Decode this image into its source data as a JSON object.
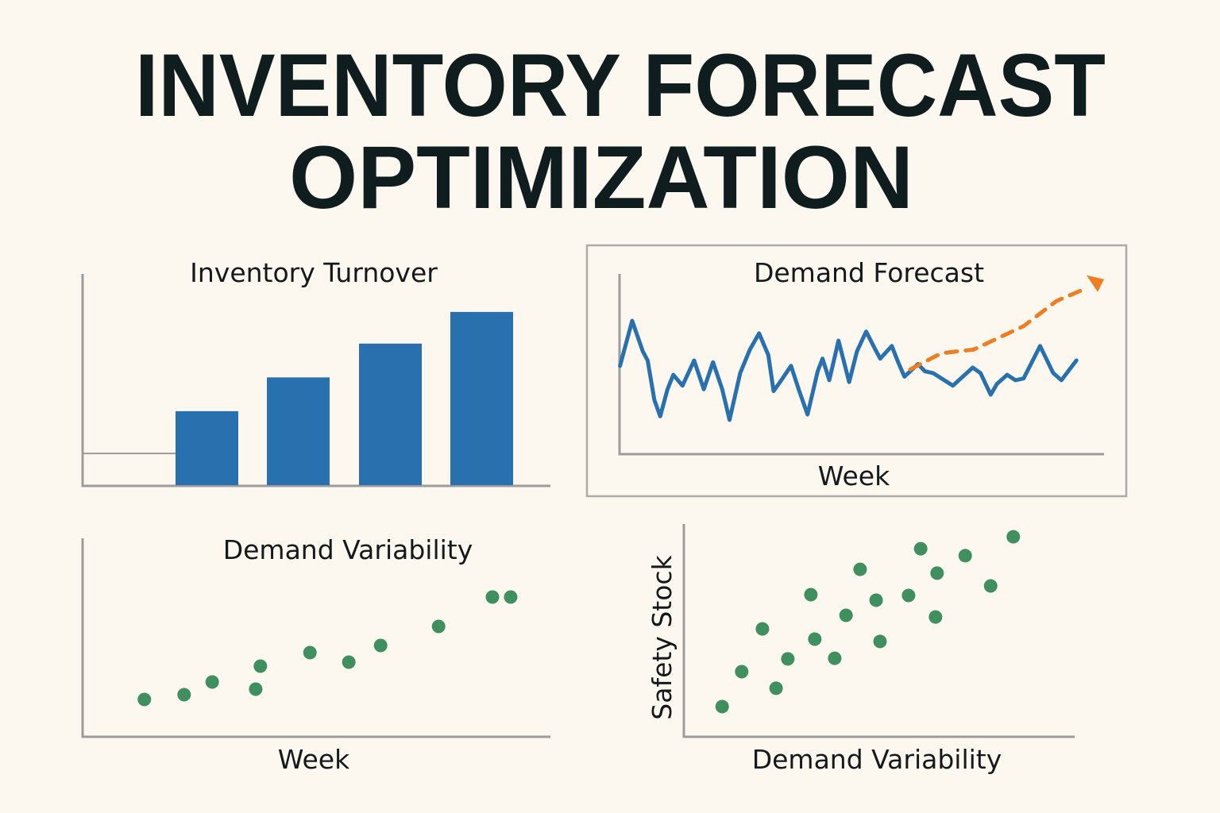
{
  "title": {
    "line1": "INVENTORY FORECAST",
    "line2": "OPTIMIZATION"
  },
  "colors": {
    "background": "#fcf8ef",
    "bar": "#2870ae",
    "line": "#2870ae",
    "forecast": "#ee7d23",
    "points": "#3f8f5f",
    "axis": "#9c9c9c",
    "text": "#0f1d1f"
  },
  "chart_data": [
    {
      "type": "bar",
      "title": "Inventory Turnover",
      "xlabel": "",
      "ylabel": "",
      "ylim": [
        0,
        100
      ],
      "baseline_segment_value": 15,
      "values": [
        35,
        51,
        67,
        82
      ],
      "grid": false
    },
    {
      "type": "line",
      "title": "Demand Forecast",
      "xlabel": "Week",
      "ylabel": "",
      "xlim": [
        0,
        100
      ],
      "ylim": [
        0,
        100
      ],
      "grid": false,
      "framed": true,
      "series": [
        {
          "style": "solid",
          "color": "#2870ae",
          "x": [
            0.1,
            2.6,
            4.8,
            5.8,
            7.2,
            8.4,
            9.9,
            11.1,
            13.0,
            15.4,
            17.4,
            19.3,
            21.2,
            22.7,
            24.9,
            26.9,
            28.8,
            30.7,
            31.8,
            33.4,
            35.4,
            37.1,
            38.8,
            40.9,
            41.9,
            43.3,
            45.2,
            47.4,
            49.0,
            50.9,
            52.8,
            53.8,
            56.2,
            57.5,
            58.8,
            61.6,
            63.0,
            64.7,
            68.8,
            72.9,
            74.5,
            76.6,
            77.9,
            80.0,
            81.7,
            83.4,
            86.8,
            89.5,
            91.2,
            94.3
          ],
          "y": [
            49,
            74,
            57,
            52,
            30,
            21,
            36,
            44,
            38,
            52,
            36,
            51,
            36,
            19,
            45,
            58,
            67,
            55,
            35,
            41,
            49,
            35,
            22,
            46,
            53,
            41,
            63,
            40,
            57,
            68,
            58,
            53,
            60,
            51,
            43,
            50,
            46,
            45,
            38,
            48,
            45,
            33,
            39,
            44,
            41,
            42,
            60,
            45,
            41,
            52
          ]
        },
        {
          "style": "dashed-arrow",
          "color": "#ee7d23",
          "x": [
            60.0,
            66.4,
            73.1,
            83.4,
            90.2,
            96.3,
            100
          ],
          "y": [
            47,
            56,
            58,
            71,
            85,
            92,
            97
          ]
        }
      ]
    },
    {
      "type": "scatter",
      "title": "Demand Variability",
      "xlabel": "Week",
      "ylabel": "",
      "xlim": [
        0,
        100
      ],
      "ylim": [
        0,
        100
      ],
      "grid": false,
      "x": [
        13.2,
        21.7,
        27.7,
        37.0,
        38.0,
        48.6,
        56.9,
        63.7,
        76.1,
        87.6,
        91.5
      ],
      "y": [
        18.8,
        21.2,
        27.6,
        24.0,
        35.6,
        42.4,
        37.6,
        46.0,
        55.6,
        70.4,
        70.4
      ]
    },
    {
      "type": "scatter",
      "title": "",
      "xlabel": "Demand Variability",
      "ylabel": "Safety Stock",
      "xlim": [
        0,
        100
      ],
      "ylim": [
        0,
        100
      ],
      "grid": false,
      "x": [
        9.8,
        14.8,
        20.1,
        23.6,
        26.6,
        32.5,
        33.5,
        38.6,
        41.5,
        45.1,
        49.2,
        50.2,
        57.5,
        60.6,
        64.4,
        64.8,
        72.0,
        78.5,
        84.3
      ],
      "y": [
        14.2,
        30.6,
        50.7,
        22.8,
        36.6,
        66.8,
        45.9,
        36.9,
        57.1,
        78.7,
        64.2,
        44.8,
        66.4,
        88.4,
        56.3,
        76.9,
        85.1,
        70.9,
        94.0
      ]
    }
  ]
}
